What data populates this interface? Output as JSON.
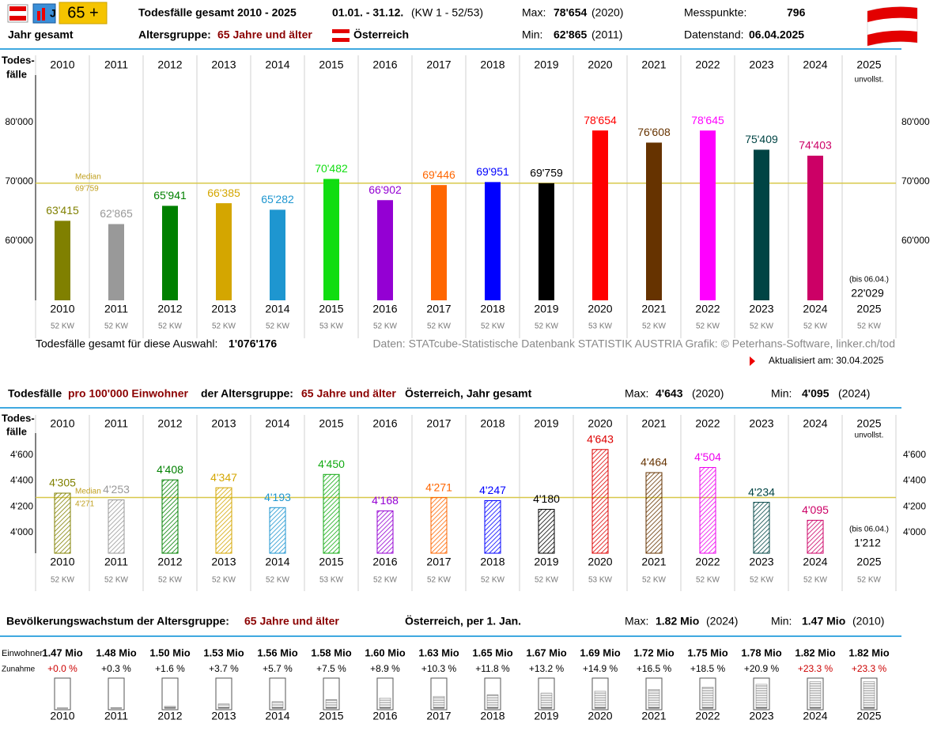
{
  "header": {
    "badge": "65 +",
    "title": "Todesfälle gesamt 2010 - 2025",
    "period": "01.01. - 31.12.",
    "kw": "(KW 1 - 52/53)",
    "max_label": "Max:",
    "max_value": "78'654",
    "max_year": "(2020)",
    "min_label": "Min:",
    "min_value": "62'865",
    "min_year": "(2011)",
    "points_label": "Messpunkte:",
    "points": "796",
    "scope": "Jahr gesamt",
    "age_label": "Altersgruppe:",
    "age": "65 Jahre und älter",
    "country": "Österreich",
    "date_label": "Datenstand:",
    "date": "06.04.2025"
  },
  "footer": {
    "total_label": "Todesfälle gesamt für diese Auswahl:",
    "total": "1'076'176",
    "source": "Daten: STATcube-Statistische Datenbank STATISTIK AUSTRIA  Grafik: © Peterhans-Software, linker.ch/tod",
    "updated": "Aktualisiert am: 30.04.2025"
  },
  "section2": {
    "t1": "Todesfälle",
    "t2": "pro 100'000 Einwohner",
    "t3": "der Altersgruppe:",
    "t4": "65 Jahre und älter",
    "t5": "Österreich, Jahr gesamt",
    "max_label": "Max:",
    "max_value": "4'643",
    "max_year": "(2020)",
    "min_label": "Min:",
    "min_value": "4'095",
    "min_year": "(2024)"
  },
  "section3": {
    "t1": "Bevölkerungswachstum der Altersgruppe:",
    "t2": "65 Jahre und älter",
    "t3": "Österreich, per 1. Jan.",
    "max_label": "Max:",
    "max_value": "1.82 Mio",
    "max_year": "(2024)",
    "min_label": "Min:",
    "min_value": "1.47 Mio",
    "min_year": "(2010)"
  },
  "chart_data": [
    {
      "type": "bar",
      "y_label": [
        "Todes-",
        "fälle"
      ],
      "categories": [
        "2010",
        "2011",
        "2012",
        "2013",
        "2014",
        "2015",
        "2016",
        "2017",
        "2018",
        "2019",
        "2020",
        "2021",
        "2022",
        "2023",
        "2024",
        "2025"
      ],
      "values": [
        63415,
        62865,
        65941,
        66385,
        65282,
        70482,
        66902,
        69446,
        69951,
        69759,
        78654,
        76608,
        78645,
        75409,
        74403,
        null
      ],
      "value_labels": [
        "63'415",
        "62'865",
        "65'941",
        "66'385",
        "65'282",
        "70'482",
        "66'902",
        "69'446",
        "69'951",
        "69'759",
        "78'654",
        "76'608",
        "78'645",
        "75'409",
        "74'403",
        null
      ],
      "colors": [
        "#808000",
        "#999999",
        "#008000",
        "#d4a600",
        "#1e96d0",
        "#11dd11",
        "#9400d3",
        "#ff6600",
        "#0000ff",
        "#000000",
        "#ff0000",
        "#663300",
        "#ff00ff",
        "#004444",
        "#cc0066",
        null
      ],
      "kw": [
        "52 KW",
        "52 KW",
        "52 KW",
        "52 KW",
        "52 KW",
        "53 KW",
        "52 KW",
        "52 KW",
        "52 KW",
        "52 KW",
        "53 KW",
        "52 KW",
        "52 KW",
        "52 KW",
        "52 KW",
        "52 KW"
      ],
      "ylim": [
        50000,
        88000
      ],
      "yticks": [
        {
          "value": 60000,
          "label": "60'000"
        },
        {
          "value": 70000,
          "label": "70'000"
        },
        {
          "value": 80000,
          "label": "80'000"
        }
      ],
      "median": {
        "label": "Median",
        "value": 69759,
        "value_label": "69'759"
      },
      "partial": {
        "flag": "unvollst.",
        "note": "(bis 06.04.)",
        "value": 22029,
        "label": "22'029"
      }
    },
    {
      "type": "hatched-bar",
      "y_label": [
        "Todes-",
        "fälle"
      ],
      "categories": [
        "2010",
        "2011",
        "2012",
        "2013",
        "2014",
        "2015",
        "2016",
        "2017",
        "2018",
        "2019",
        "2020",
        "2021",
        "2022",
        "2023",
        "2024",
        "2025"
      ],
      "values": [
        4305,
        4253,
        4408,
        4347,
        4193,
        4450,
        4168,
        4271,
        4247,
        4180,
        4643,
        4464,
        4504,
        4234,
        4095,
        null
      ],
      "value_labels": [
        "4'305",
        "4'253",
        "4'408",
        "4'347",
        "4'193",
        "4'450",
        "4'168",
        "4'271",
        "4'247",
        "4'180",
        "4'643",
        "4'464",
        "4'504",
        "4'234",
        "4'095",
        null
      ],
      "colors": [
        "#808000",
        "#999999",
        "#008000",
        "#d4a600",
        "#1e96d0",
        "#11aa11",
        "#9400d3",
        "#ff6600",
        "#0000ff",
        "#000000",
        "#dd0000",
        "#663300",
        "#ee00ee",
        "#004444",
        "#cc0066",
        null
      ],
      "kw": [
        "52 KW",
        "52 KW",
        "52 KW",
        "52 KW",
        "52 KW",
        "53 KW",
        "52 KW",
        "52 KW",
        "52 KW",
        "52 KW",
        "53 KW",
        "52 KW",
        "52 KW",
        "52 KW",
        "52 KW",
        "52 KW"
      ],
      "ylim": [
        3840,
        4770
      ],
      "yticks": [
        {
          "value": 4000,
          "label": "4'000"
        },
        {
          "value": 4200,
          "label": "4'200"
        },
        {
          "value": 4400,
          "label": "4'400"
        },
        {
          "value": 4600,
          "label": "4'600"
        }
      ],
      "median": {
        "label": "Median",
        "value": 4271,
        "value_label": "4'271"
      },
      "partial": {
        "flag": "unvollst.",
        "note": "(bis 06.04.)",
        "value": 1212,
        "label": "1'212"
      }
    },
    {
      "type": "gauge",
      "row_labels": [
        "Einwohner",
        "Zunahme"
      ],
      "categories": [
        "2010",
        "2011",
        "2012",
        "2013",
        "2014",
        "2015",
        "2016",
        "2017",
        "2018",
        "2019",
        "2020",
        "2021",
        "2022",
        "2023",
        "2024",
        "2025"
      ],
      "values": [
        1.47,
        1.48,
        1.5,
        1.53,
        1.56,
        1.58,
        1.6,
        1.63,
        1.65,
        1.67,
        1.69,
        1.72,
        1.75,
        1.78,
        1.82,
        1.82
      ],
      "value_labels": [
        "1.47 Mio",
        "1.48 Mio",
        "1.50 Mio",
        "1.53 Mio",
        "1.56 Mio",
        "1.58 Mio",
        "1.60 Mio",
        "1.63 Mio",
        "1.65 Mio",
        "1.67 Mio",
        "1.69 Mio",
        "1.72 Mio",
        "1.75 Mio",
        "1.78 Mio",
        "1.82 Mio",
        "1.82 Mio"
      ],
      "growth": [
        0.0,
        0.3,
        1.6,
        3.7,
        5.7,
        7.5,
        8.9,
        10.3,
        11.8,
        13.2,
        14.9,
        16.5,
        18.5,
        20.9,
        23.3,
        23.3
      ],
      "growth_labels": [
        "+0.0 %",
        "+0.3 %",
        "+1.6 %",
        "+3.7 %",
        "+5.7 %",
        "+7.5 %",
        "+8.9 %",
        "+10.3 %",
        "+11.8 %",
        "+13.2 %",
        "+14.9 %",
        "+16.5 %",
        "+18.5 %",
        "+20.9 %",
        "+23.3 %",
        "+23.3 %"
      ],
      "growth_colors": [
        "#cc0000",
        "#000000",
        "#000000",
        "#000000",
        "#000000",
        "#000000",
        "#000000",
        "#000000",
        "#000000",
        "#000000",
        "#000000",
        "#000000",
        "#000000",
        "#000000",
        "#cc0000",
        "#cc0000"
      ],
      "ylim": [
        0,
        25
      ]
    }
  ]
}
